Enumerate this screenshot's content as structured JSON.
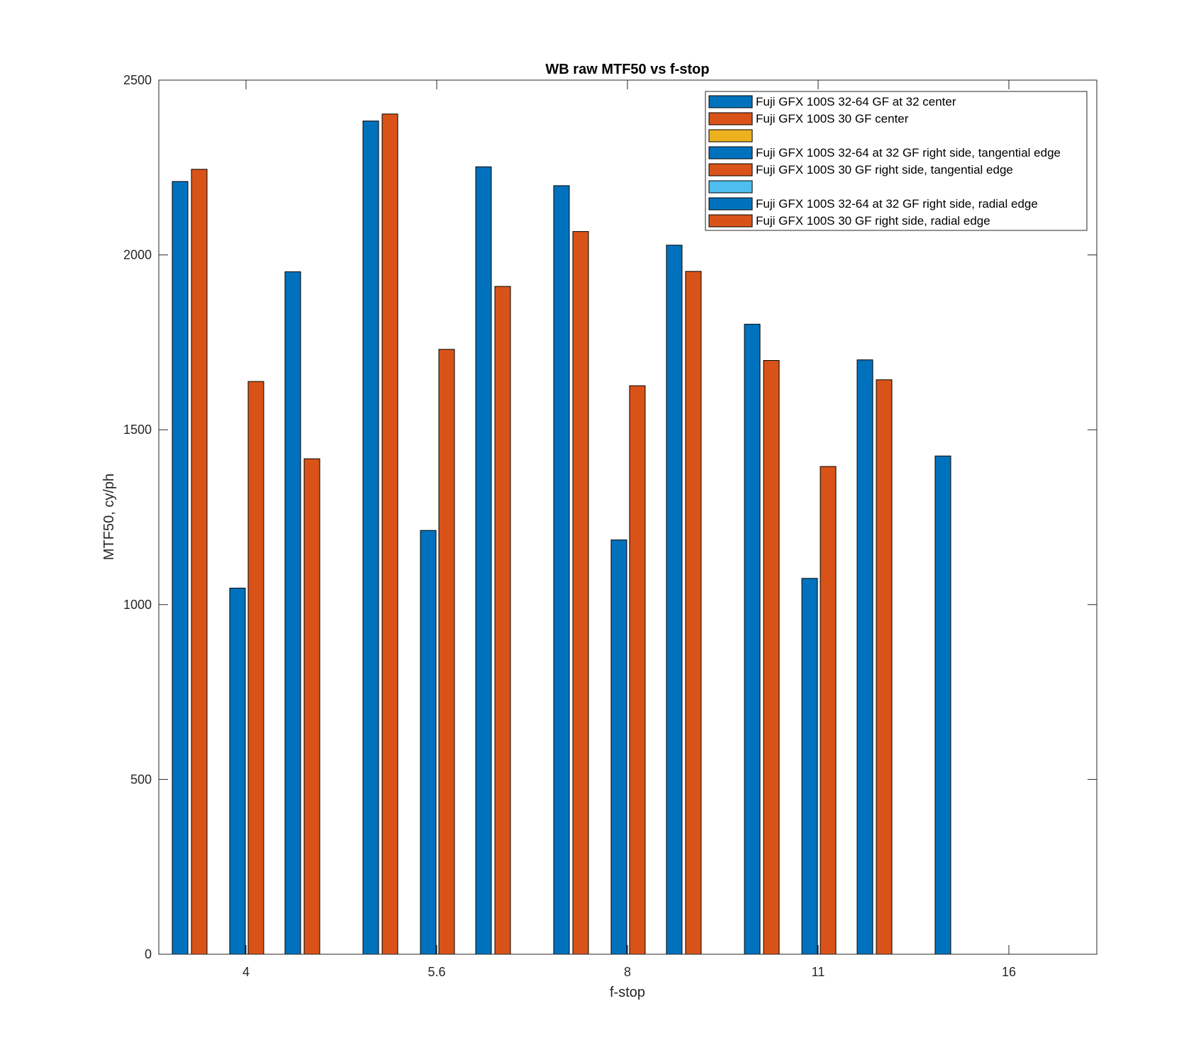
{
  "chart_data": {
    "type": "bar",
    "title": "WB raw MTF50 vs f-stop",
    "xlabel": "f-stop",
    "ylabel": "MTF50, cy/ph",
    "ylim": [
      0,
      2500
    ],
    "yticks": [
      0,
      500,
      1000,
      1500,
      2000,
      2500
    ],
    "categories": [
      "4",
      "5.6",
      "8",
      "11",
      "16"
    ],
    "grid": false,
    "legend_position": "top-right",
    "series": [
      {
        "name": "Fuji GFX 100S 32-64 GF at 32 center",
        "color": "#0072BD",
        "values": [
          2210,
          2383,
          2198,
          1802,
          1425
        ]
      },
      {
        "name": "Fuji GFX 100S 30 GF center",
        "color": "#D95319",
        "values": [
          2245,
          2403,
          2067,
          1698,
          null
        ]
      },
      {
        "name": "",
        "color": "#EDB120",
        "values": [
          null,
          null,
          null,
          null,
          null
        ]
      },
      {
        "name": "Fuji GFX 100S 32-64 at 32 GF right side, tangential edge",
        "color": "#0072BD",
        "values": [
          1047,
          1212,
          1185,
          1075,
          null
        ]
      },
      {
        "name": "Fuji GFX 100S 30 GF right side, tangential edge",
        "color": "#D95319",
        "values": [
          1638,
          1730,
          1626,
          1395,
          null
        ]
      },
      {
        "name": "",
        "color": "#4DBEEE",
        "values": [
          null,
          null,
          null,
          null,
          null
        ]
      },
      {
        "name": "Fuji GFX 100S 32-64 at 32 GF right side, radial edge",
        "color": "#0072BD",
        "values": [
          1952,
          2252,
          2028,
          1700,
          null
        ]
      },
      {
        "name": "Fuji GFX 100S 30 GF right side, radial edge",
        "color": "#D95319",
        "values": [
          1417,
          1910,
          1953,
          1643,
          null
        ]
      }
    ]
  }
}
